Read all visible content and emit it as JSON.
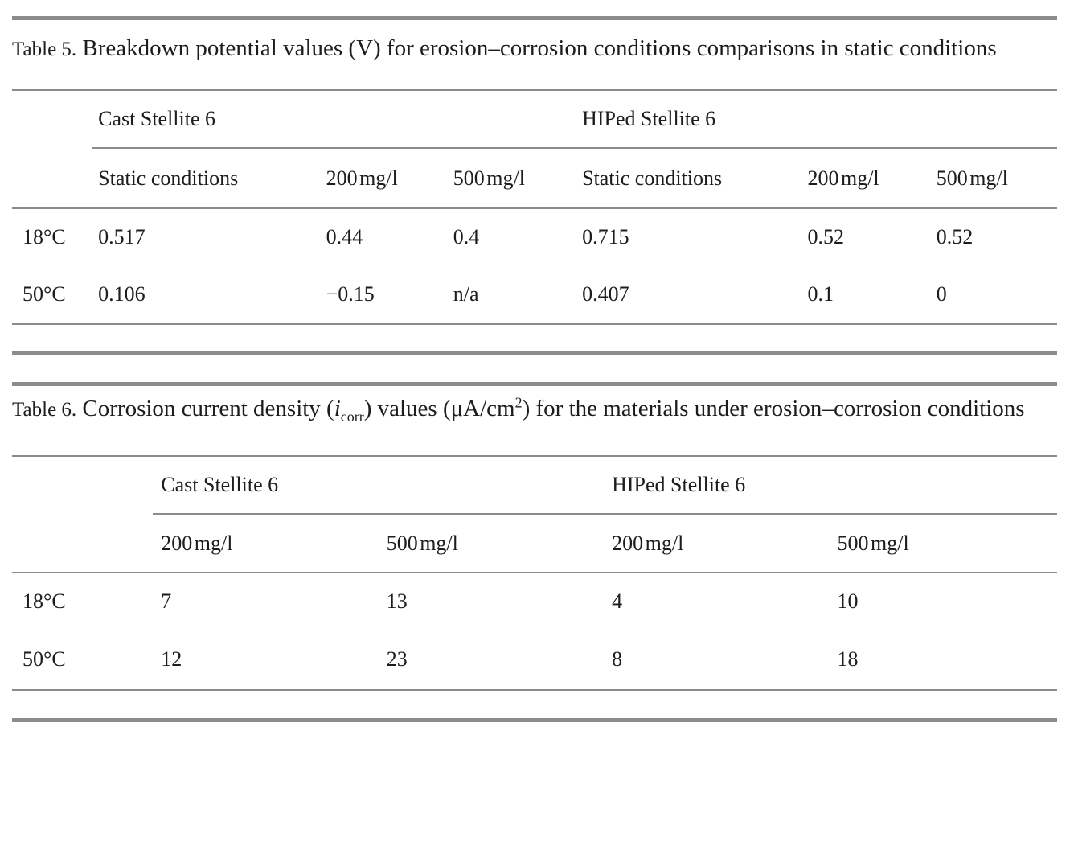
{
  "page": {
    "background": "#ffffff",
    "text_color": "#1d1d1d",
    "rule_color": "#8c8c8c"
  },
  "table5": {
    "label": "Table 5.",
    "title": "Breakdown potential values (V) for erosion–corrosion conditions comparisons in static conditions",
    "group_headers": [
      "Cast Stellite 6",
      "HIPed Stellite 6"
    ],
    "sub_headers": [
      "Static conditions",
      "200 mg/l",
      "500 mg/l",
      "Static conditions",
      "200 mg/l",
      "500 mg/l"
    ],
    "rows": [
      {
        "label": "18°C",
        "values": [
          "0.517",
          "0.44",
          "0.4",
          "0.715",
          "0.52",
          "0.52"
        ]
      },
      {
        "label": "50°C",
        "values": [
          "0.106",
          "−0.15",
          "n/a",
          "0.407",
          "0.1",
          "0"
        ]
      }
    ]
  },
  "table6": {
    "label": "Table 6.",
    "title_parts": {
      "seg1": "Corrosion current density (",
      "ivar": "i",
      "isub": "corr",
      "seg2": ") values (μA/cm",
      "sup": "2",
      "seg3a": ") for the materials under erosion–",
      "seg3b": "corrosion conditions"
    },
    "group_headers": [
      "Cast Stellite 6",
      "HIPed Stellite 6"
    ],
    "sub_headers": [
      "200 mg/l",
      "500 mg/l",
      "200 mg/l",
      "500 mg/l"
    ],
    "rows": [
      {
        "label": "18°C",
        "values": [
          "7",
          "13",
          "4",
          "10"
        ]
      },
      {
        "label": "50°C",
        "values": [
          "12",
          "23",
          "8",
          "18"
        ]
      }
    ]
  }
}
